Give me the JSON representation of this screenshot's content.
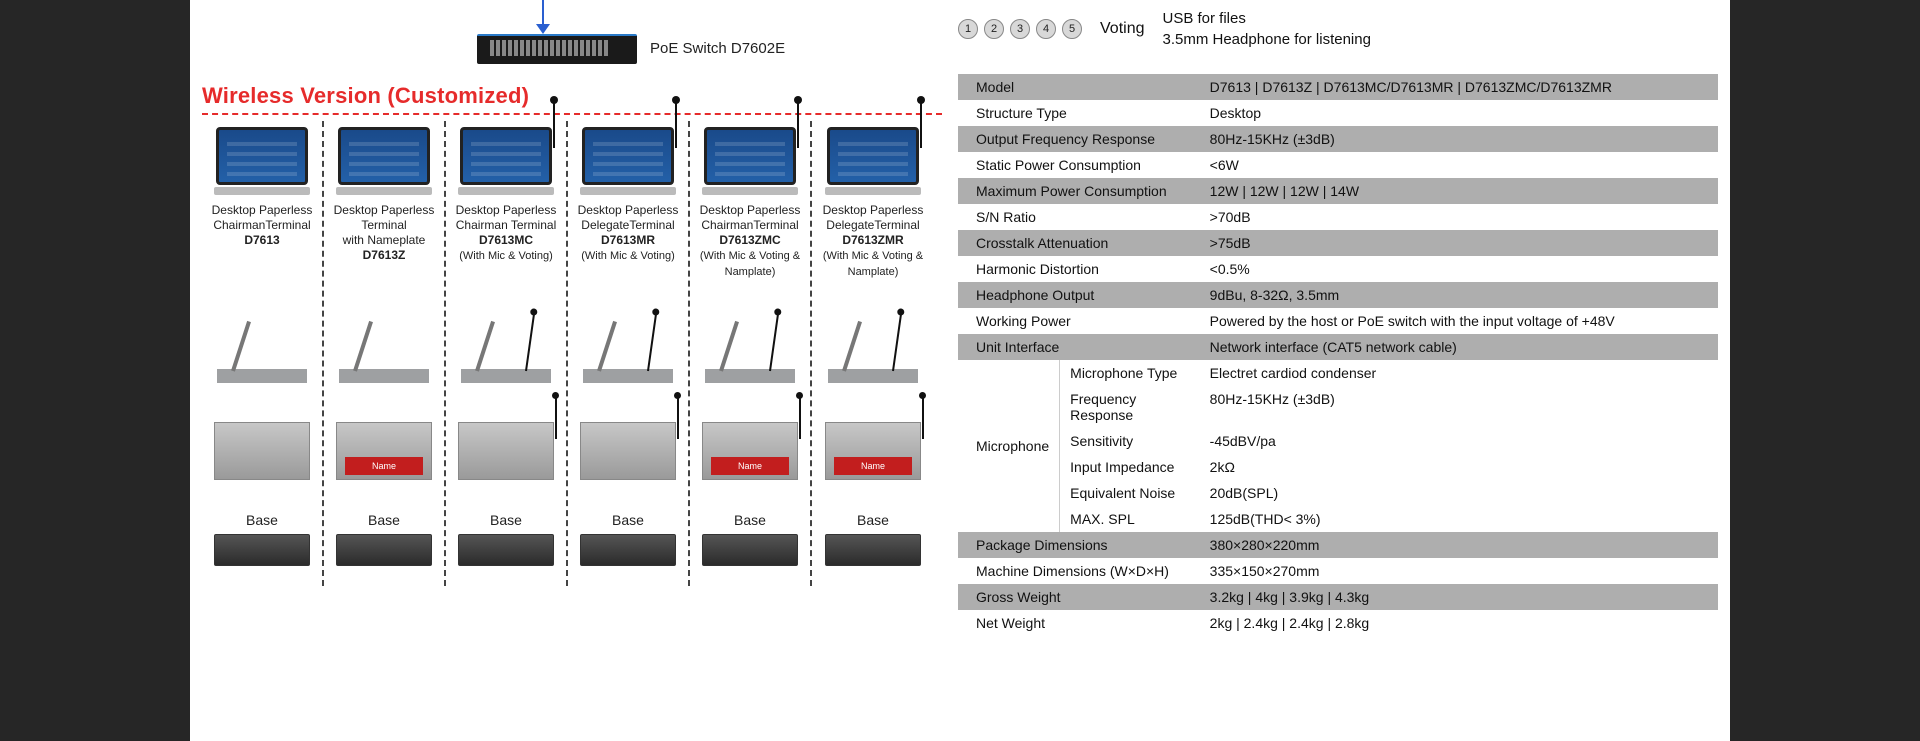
{
  "switch": {
    "label": "PoE Switch D7602E"
  },
  "section_title": "Wireless Version (Customized)",
  "products": [
    {
      "line1": "Desktop Paperless",
      "line2": "ChairmanTerminal",
      "model": "D7613",
      "note": "",
      "mic": false,
      "nameplate": false
    },
    {
      "line1": "Desktop Paperless",
      "line2": "Terminal",
      "line3": "with Nameplate",
      "model": "D7613Z",
      "note": "",
      "mic": false,
      "nameplate": true
    },
    {
      "line1": "Desktop Paperless",
      "line2": "Chairman Terminal",
      "model": "D7613MC",
      "note": "(With Mic & Voting)",
      "mic": true,
      "nameplate": false
    },
    {
      "line1": "Desktop Paperless",
      "line2": "DelegateTerminal",
      "model": "D7613MR",
      "note": "(With Mic & Voting)",
      "mic": true,
      "nameplate": false
    },
    {
      "line1": "Desktop Paperless",
      "line2": "ChairmanTerminal",
      "model": "D7613ZMC",
      "note": "(With Mic & Voting & Namplate)",
      "mic": true,
      "nameplate": true
    },
    {
      "line1": "Desktop Paperless",
      "line2": "DelegateTerminal",
      "model": "D7613ZMR",
      "note": "(With Mic & Voting & Namplate)",
      "mic": true,
      "nameplate": true
    }
  ],
  "base_label": "Base",
  "nameplate_text": "Name",
  "feature_row": {
    "voting_label": "Voting",
    "text_line1": "USB for files",
    "text_line2": "3.5mm Headphone for listening"
  },
  "specs": [
    {
      "shade": true,
      "label": "Model",
      "value": "D7613 | D7613Z | D7613MC/D7613MR | D7613ZMC/D7613ZMR"
    },
    {
      "shade": false,
      "label": "Structure Type",
      "value": "Desktop"
    },
    {
      "shade": true,
      "label": "Output Frequency Response",
      "value": "80Hz-15KHz (±3dB)"
    },
    {
      "shade": false,
      "label": "Static Power Consumption",
      "value": "<6W"
    },
    {
      "shade": true,
      "label": "Maximum Power Consumption",
      "value": "12W | 12W | 12W | 14W"
    },
    {
      "shade": false,
      "label": "S/N Ratio",
      "value": ">70dB"
    },
    {
      "shade": true,
      "label": "Crosstalk Attenuation",
      "value": ">75dB"
    },
    {
      "shade": false,
      "label": "Harmonic Distortion",
      "value": "<0.5%"
    },
    {
      "shade": true,
      "label": "Headphone Output",
      "value": "9dBu, 8-32Ω, 3.5mm"
    },
    {
      "shade": false,
      "label": "Working Power",
      "value": "Powered by the host or PoE switch with the input voltage of +48V"
    },
    {
      "shade": true,
      "label": "Unit Interface",
      "value": "Network interface (CAT5 network cable)"
    }
  ],
  "mic_group_label": "Microphone",
  "mic_specs": [
    {
      "label": "Microphone Type",
      "value": "Electret cardiod condenser"
    },
    {
      "label": "Frequency Response",
      "value": "80Hz-15KHz (±3dB)"
    },
    {
      "label": "Sensitivity",
      "value": "-45dBV/pa"
    },
    {
      "label": "Input Impedance",
      "value": "2kΩ"
    },
    {
      "label": "Equivalent Noise",
      "value": "20dB(SPL)"
    },
    {
      "label": "MAX. SPL",
      "value": "125dB(THD< 3%)"
    }
  ],
  "specs_after": [
    {
      "shade": true,
      "label": "Package Dimensions",
      "value": "380×280×220mm"
    },
    {
      "shade": false,
      "label": "Machine Dimensions (W×D×H)",
      "value": "335×150×270mm"
    },
    {
      "shade": true,
      "label": "Gross Weight",
      "value": "3.2kg | 4kg | 3.9kg | 4.3kg"
    },
    {
      "shade": false,
      "label": "Net Weight",
      "value": "2kg | 2.4kg | 2.4kg | 2.8kg"
    }
  ]
}
